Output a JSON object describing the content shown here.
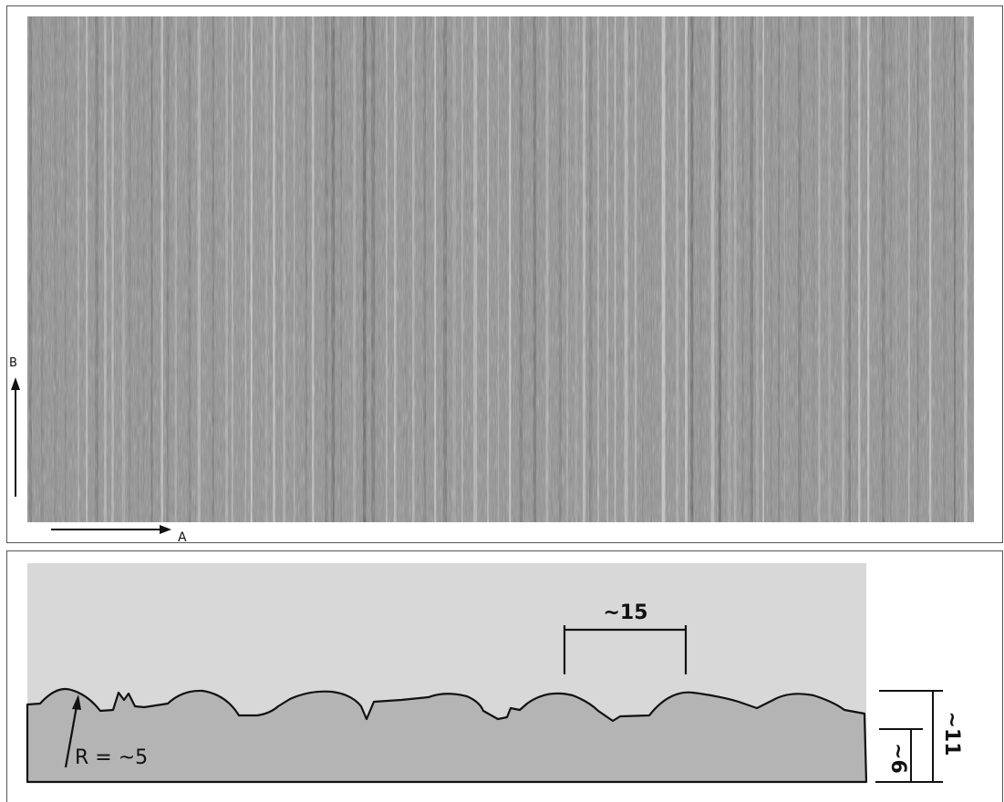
{
  "figure": {
    "micrograph": {
      "axis_a_label": "A",
      "axis_b_label": "B"
    },
    "profile": {
      "spacing_label": "~15",
      "radius_label": "R = ~5",
      "depth_label": "~6",
      "height_label": "~11"
    },
    "colors": {
      "micrograph_base": "#8e8e8e",
      "profile_background": "#d8d8d8",
      "profile_material": "#b4b4b4",
      "outline": "#111111"
    }
  }
}
